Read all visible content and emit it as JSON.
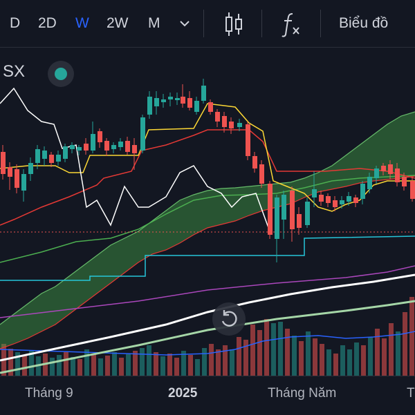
{
  "toolbar": {
    "timeframes": [
      "D",
      "2D",
      "W",
      "2W",
      "M"
    ],
    "active_timeframe": "W",
    "chart_type_label": "Biểu đồ"
  },
  "symbol": {
    "label": "SX",
    "status_color": "#26a69a"
  },
  "time_axis": {
    "labels": [
      "Tháng 9",
      "2025",
      "Tháng Năm",
      "T"
    ]
  },
  "colors": {
    "background": "#131722",
    "up": "#26a69a",
    "down": "#ef5350",
    "cloud_fill": "#43a047",
    "accent": "#2962ff"
  },
  "icons": [
    "chevron-down-icon",
    "candlestick-icon",
    "indicators-fx-icon",
    "reset-view-icon"
  ]
}
